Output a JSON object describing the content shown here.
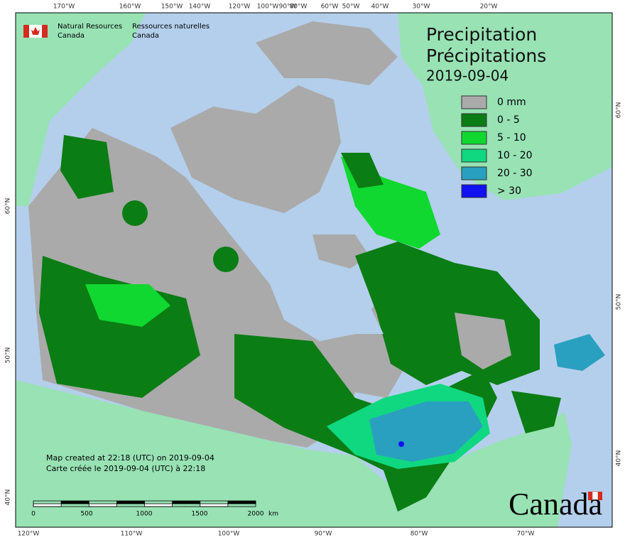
{
  "header": {
    "agency_en": [
      "Natural Resources",
      "Canada"
    ],
    "agency_fr": [
      "Ressources naturelles",
      "Canada"
    ]
  },
  "title": [
    "Precipitation",
    "Précipitations"
  ],
  "date": "2019-09-04",
  "legend": [
    {
      "label": "0 mm",
      "color": "#aaaaaa"
    },
    {
      "label": "0 - 5",
      "color": "#0a7d14"
    },
    {
      "label": "5 - 10",
      "color": "#10d830"
    },
    {
      "label": "10 - 20",
      "color": "#10d880"
    },
    {
      "label": "20 - 30",
      "color": "#2aa0c0"
    },
    {
      "label": "> 30",
      "color": "#1010f0"
    }
  ],
  "credits": [
    "Map created at 22:18 (UTC) on 2019-09-04",
    "Carte créée le 2019-09-04 (UTC) à 22:18"
  ],
  "scale": {
    "labels": [
      "0",
      "500",
      "1000",
      "1500",
      "2000"
    ],
    "unit": "km"
  },
  "top_longitudes": [
    "170°W",
    "160°W",
    "150°W",
    "140°W",
    "120°W",
    "100°W",
    "90°W",
    "80°W",
    "60°W",
    "50°W",
    "40°W",
    "30°W",
    "20°W"
  ],
  "bottom_longitudes": [
    "120°W",
    "110°W",
    "100°W",
    "90°W",
    "80°W",
    "70°W"
  ],
  "left_latitudes": [
    "60°N",
    "50°N",
    "40°N"
  ],
  "right_latitudes": [
    "60°N",
    "50°N",
    "40°N"
  ],
  "wordmark": "Canada"
}
